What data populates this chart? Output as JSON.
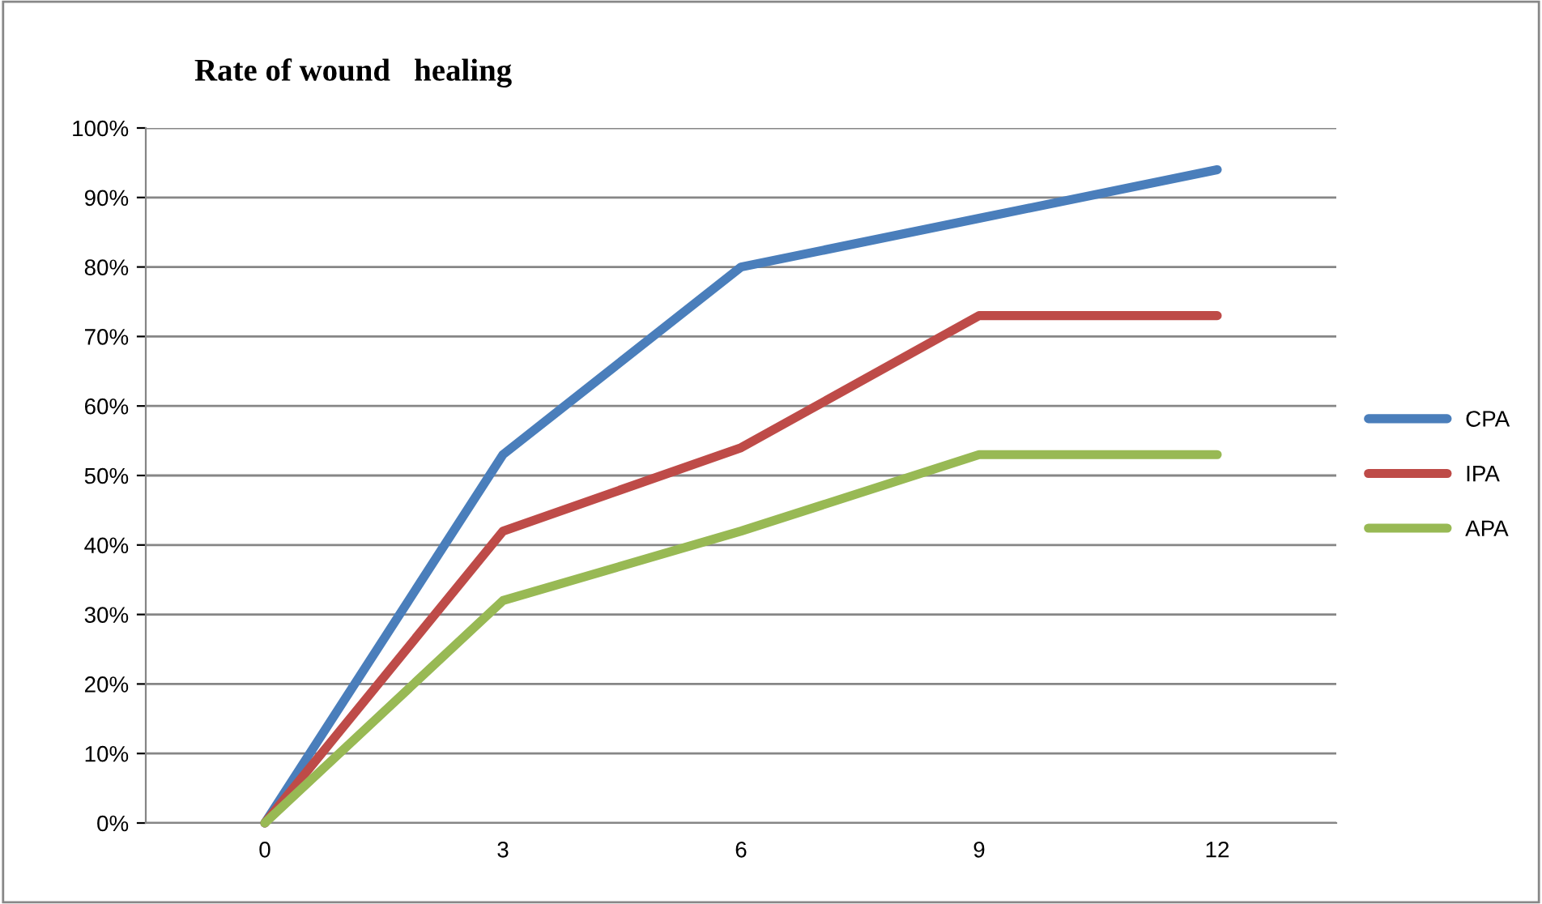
{
  "chart_data": {
    "type": "line",
    "title": "Rate of wound   healing",
    "categories": [
      "0",
      "3",
      "6",
      "9",
      "12"
    ],
    "series": [
      {
        "name": "CPA",
        "color": "#4a7ebb",
        "values": [
          0,
          53,
          80,
          87,
          94
        ]
      },
      {
        "name": "IPA",
        "color": "#be4b48",
        "values": [
          0,
          42,
          54,
          73,
          73
        ]
      },
      {
        "name": "APA",
        "color": "#98b954",
        "values": [
          0,
          32,
          42,
          53,
          53
        ]
      }
    ],
    "ylim": [
      0,
      100
    ],
    "yticks": [
      {
        "value": 0,
        "label": "0%"
      },
      {
        "value": 10,
        "label": "10%"
      },
      {
        "value": 20,
        "label": "20%"
      },
      {
        "value": 30,
        "label": "30%"
      },
      {
        "value": 40,
        "label": "40%"
      },
      {
        "value": 50,
        "label": "50%"
      },
      {
        "value": 60,
        "label": "60%"
      },
      {
        "value": 70,
        "label": "70%"
      },
      {
        "value": 80,
        "label": "80%"
      },
      {
        "value": 90,
        "label": "90%"
      },
      {
        "value": 100,
        "label": "100%"
      }
    ],
    "grid": "y",
    "legend": "right",
    "marker": "none",
    "line_style": "solid"
  }
}
